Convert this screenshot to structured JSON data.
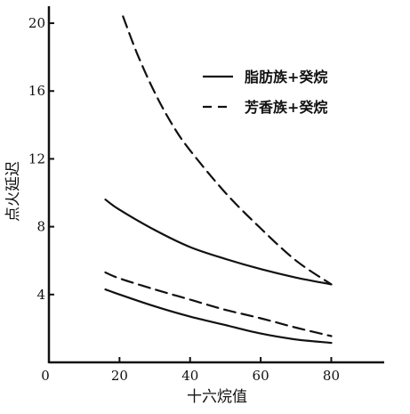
{
  "chart_data": {
    "type": "line",
    "title": "",
    "xlabel": "十六烷值",
    "ylabel": "点火延迟",
    "xlim": [
      0,
      95
    ],
    "ylim": [
      0,
      21
    ],
    "x_ticks": [
      0,
      20,
      40,
      60,
      80
    ],
    "y_ticks": [
      4,
      8,
      12,
      16,
      20
    ],
    "x_tick_labels": [
      "0",
      "20",
      "40",
      "60",
      "80"
    ],
    "y_tick_labels": [
      "4",
      "8",
      "12",
      "16",
      "20"
    ],
    "grid": false,
    "legend_position": "top-right",
    "legend": [
      {
        "label": "脂肪族+癸烷",
        "style": "solid"
      },
      {
        "label": "芳香族+癸烷",
        "style": "dashed"
      }
    ],
    "series": [
      {
        "style": "solid",
        "points": [
          [
            16,
            9.6
          ],
          [
            20,
            9.0
          ],
          [
            30,
            7.8
          ],
          [
            40,
            6.8
          ],
          [
            50,
            6.1
          ],
          [
            60,
            5.5
          ],
          [
            70,
            5.0
          ],
          [
            80,
            4.6
          ]
        ]
      },
      {
        "style": "solid",
        "points": [
          [
            16,
            4.3
          ],
          [
            20,
            4.0
          ],
          [
            30,
            3.3
          ],
          [
            40,
            2.7
          ],
          [
            50,
            2.2
          ],
          [
            60,
            1.7
          ],
          [
            70,
            1.35
          ],
          [
            80,
            1.15
          ]
        ]
      },
      {
        "style": "dashed",
        "points": [
          [
            21,
            20.4
          ],
          [
            25,
            18.2
          ],
          [
            30,
            15.9
          ],
          [
            35,
            14.0
          ],
          [
            40,
            12.5
          ],
          [
            50,
            10.0
          ],
          [
            60,
            7.9
          ],
          [
            70,
            6.0
          ],
          [
            80,
            4.6
          ]
        ]
      },
      {
        "style": "dashed",
        "points": [
          [
            16,
            5.3
          ],
          [
            20,
            4.95
          ],
          [
            30,
            4.3
          ],
          [
            40,
            3.7
          ],
          [
            50,
            3.1
          ],
          [
            60,
            2.6
          ],
          [
            70,
            2.05
          ],
          [
            80,
            1.55
          ]
        ]
      }
    ]
  }
}
